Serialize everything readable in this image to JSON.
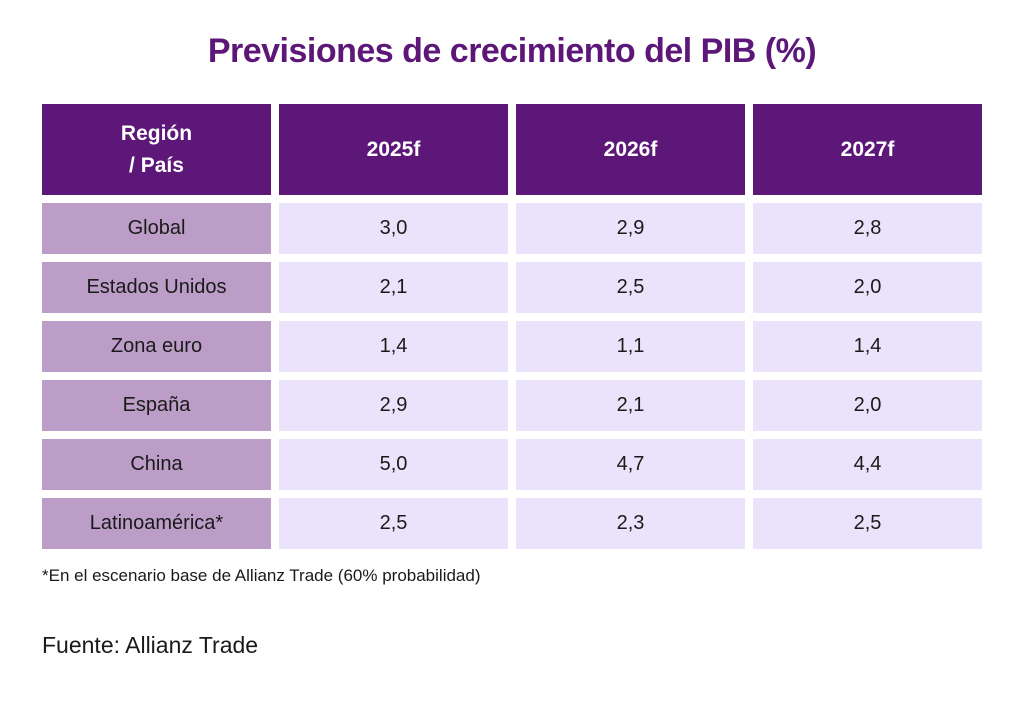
{
  "colors": {
    "header": "#5c1778",
    "row_label": "#bc9dc8",
    "cell": "#ebe2fb",
    "title": "#5c1778"
  },
  "chart_data": {
    "type": "table",
    "title": "Previsiones de crecimiento del PIB (%)",
    "columns": [
      "Región\n / País",
      "2025f",
      "2026f",
      "2027f"
    ],
    "rows": [
      {
        "label": "Global",
        "values": [
          "3,0",
          "2,9",
          "2,8"
        ]
      },
      {
        "label": "Estados Unidos",
        "values": [
          "2,1",
          "2,5",
          "2,0"
        ]
      },
      {
        "label": "Zona euro",
        "values": [
          "1,4",
          "1,1",
          "1,4"
        ]
      },
      {
        "label": "España",
        "values": [
          "2,9",
          "2,1",
          "2,0"
        ]
      },
      {
        "label": "China",
        "values": [
          "5,0",
          "4,7",
          "4,4"
        ]
      },
      {
        "label": "Latinoamérica*",
        "values": [
          "2,5",
          "2,3",
          "2,5"
        ]
      }
    ],
    "footnote": "*En el escenario base de Allianz Trade (60% probabilidad)",
    "source": "Fuente: Allianz Trade"
  }
}
